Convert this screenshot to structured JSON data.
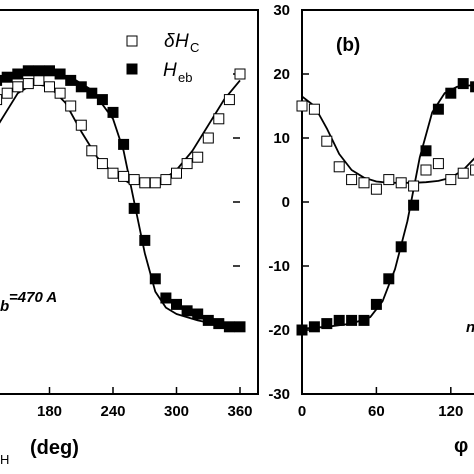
{
  "chart_data": [
    {
      "type": "scatter",
      "panel_label": "",
      "xlim": [
        120,
        360
      ],
      "ylim": [
        -30,
        30
      ],
      "x_ticks": [
        "180",
        "240",
        "300",
        "360"
      ],
      "xlabel_fragment": "H",
      "xlabel_unit": "(deg)",
      "annotation_fragment": "b",
      "annotation": "=470 A",
      "legend": {
        "position": "top-right",
        "entries": [
          {
            "symbol": "δ",
            "label": "H",
            "sub": "C",
            "marker": "open-square"
          },
          {
            "symbol": "",
            "label": "H",
            "sub": "eb",
            "marker": "filled-square"
          }
        ]
      },
      "series": [
        {
          "name": "δHC",
          "marker": "open-square",
          "x": [
            130,
            140,
            150,
            160,
            170,
            180,
            190,
            200,
            210,
            220,
            230,
            240,
            250,
            260,
            270,
            280,
            290,
            300,
            310,
            320,
            330,
            340,
            350,
            360
          ],
          "y": [
            16,
            17,
            18,
            18.5,
            19,
            18,
            17,
            15,
            12,
            8,
            6,
            4.5,
            4,
            3.5,
            3,
            3,
            3.5,
            4.5,
            6,
            7,
            10,
            13,
            16,
            20
          ]
        },
        {
          "name": "Heb",
          "marker": "filled-square",
          "x": [
            130,
            140,
            150,
            160,
            170,
            180,
            190,
            200,
            210,
            220,
            230,
            240,
            250,
            260,
            270,
            280,
            290,
            300,
            310,
            320,
            330,
            340,
            350,
            360
          ],
          "y": [
            19,
            19.5,
            20,
            20.5,
            20.5,
            20.5,
            20,
            19,
            18,
            17,
            16,
            14,
            9,
            -1,
            -6,
            -12,
            -15,
            -16,
            -17,
            -17.5,
            -18.5,
            -19,
            -19.5,
            -19.5
          ]
        },
        {
          "name": "fit δHC",
          "line": true,
          "x": [
            120,
            135,
            150,
            165,
            180,
            195,
            210,
            225,
            240,
            255,
            270,
            285,
            300,
            315,
            330,
            345,
            360
          ],
          "y": [
            9,
            13,
            17,
            18.5,
            18,
            15.5,
            11,
            7,
            4.5,
            3,
            2.8,
            3.2,
            5,
            8,
            12,
            16,
            19
          ]
        },
        {
          "name": "fit Heb",
          "line": true,
          "x": [
            120,
            140,
            160,
            180,
            200,
            220,
            240,
            250,
            260,
            270,
            280,
            290,
            300,
            320,
            340,
            360
          ],
          "y": [
            18.5,
            19.5,
            20,
            20.2,
            19.5,
            17.5,
            13,
            8,
            0,
            -8,
            -14,
            -16.5,
            -17.5,
            -18.5,
            -19.2,
            -19.5
          ]
        }
      ]
    },
    {
      "type": "scatter",
      "panel_label": "(b)",
      "xlim": [
        0,
        150
      ],
      "ylim": [
        -30,
        30
      ],
      "x_ticks": [
        "0",
        "60",
        "120"
      ],
      "y_ticks": [
        "30",
        "20",
        "10",
        "0",
        "-10",
        "-20",
        "-30"
      ],
      "xlabel_fragment": "φ",
      "side_fragment": "n",
      "series": [
        {
          "name": "δHC",
          "marker": "open-square",
          "x": [
            0,
            10,
            20,
            30,
            40,
            50,
            60,
            70,
            80,
            90,
            100,
            110,
            120,
            130,
            140,
            150
          ],
          "y": [
            15,
            14.5,
            9.5,
            5.5,
            3.5,
            3,
            2,
            3.5,
            3,
            2.5,
            5,
            6,
            3.5,
            4.5,
            5,
            8
          ]
        },
        {
          "name": "Heb",
          "marker": "filled-square",
          "x": [
            0,
            10,
            20,
            30,
            40,
            50,
            60,
            70,
            80,
            90,
            100,
            110,
            120,
            130,
            140,
            150
          ],
          "y": [
            -20,
            -19.5,
            -19,
            -18.5,
            -18.5,
            -18.5,
            -16,
            -12,
            -7,
            -0.5,
            8,
            14.5,
            17,
            18.5,
            18,
            18
          ]
        },
        {
          "name": "fit δHC",
          "line": true,
          "x": [
            0,
            10,
            20,
            30,
            40,
            50,
            60,
            70,
            80,
            90,
            100,
            110,
            120,
            130,
            140,
            150
          ],
          "y": [
            16.5,
            15,
            11.5,
            7.5,
            5,
            3.8,
            3.2,
            3,
            3,
            3,
            3.1,
            3.3,
            3.8,
            5,
            7,
            9
          ]
        },
        {
          "name": "fit Heb",
          "line": true,
          "x": [
            0,
            20,
            40,
            55,
            65,
            75,
            85,
            95,
            105,
            115,
            125,
            135,
            150
          ],
          "y": [
            -19.8,
            -19.5,
            -19,
            -18,
            -15.5,
            -10.5,
            -3,
            7,
            14,
            17,
            18,
            18.2,
            18.3
          ]
        }
      ]
    }
  ]
}
